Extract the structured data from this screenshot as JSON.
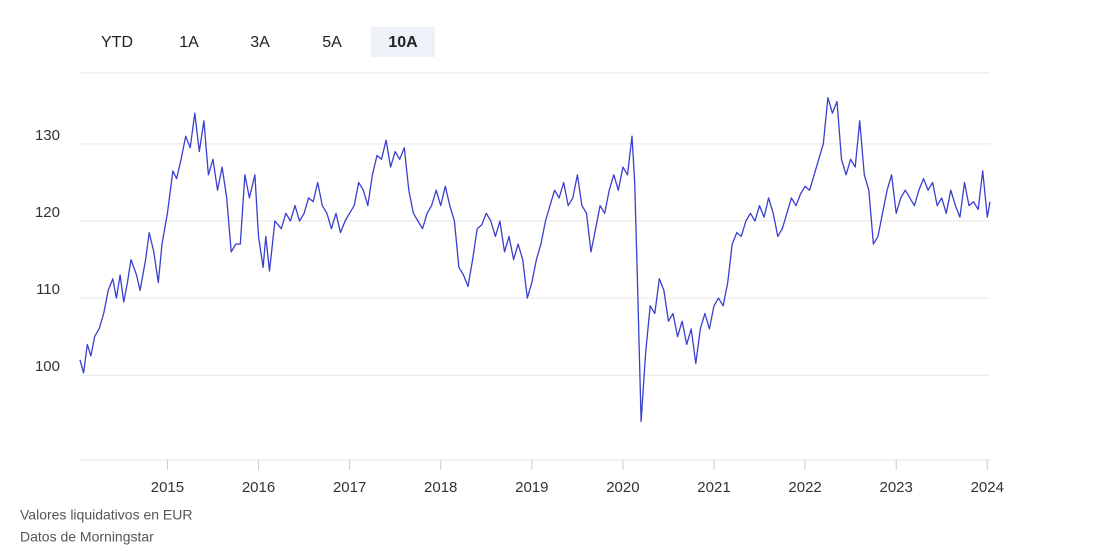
{
  "chart_data": {
    "type": "line",
    "buttons": [
      "YTD",
      "1A",
      "3A",
      "5A",
      "10A"
    ],
    "active_button": "10A",
    "notes": [
      "Valores liquidativos en EUR",
      "Datos de Morningstar"
    ],
    "xlim": [
      2014.04,
      2024.03
    ],
    "xticks": [
      2015,
      2016,
      2017,
      2018,
      2019,
      2020,
      2021,
      2022,
      2023,
      2024
    ],
    "ylim": [
      89,
      139.2
    ],
    "yticks": [
      100,
      110,
      120,
      130
    ],
    "grid": true,
    "x": [
      2014.04,
      2014.08,
      2014.12,
      2014.16,
      2014.2,
      2014.25,
      2014.3,
      2014.35,
      2014.4,
      2014.44,
      2014.48,
      2014.52,
      2014.56,
      2014.6,
      2014.66,
      2014.7,
      2014.76,
      2014.8,
      2014.85,
      2014.9,
      2014.94,
      2015.0,
      2015.06,
      2015.1,
      2015.15,
      2015.2,
      2015.25,
      2015.3,
      2015.35,
      2015.4,
      2015.45,
      2015.5,
      2015.55,
      2015.6,
      2015.65,
      2015.7,
      2015.75,
      2015.8,
      2015.85,
      2015.9,
      2015.96,
      2016.0,
      2016.05,
      2016.08,
      2016.12,
      2016.18,
      2016.25,
      2016.3,
      2016.35,
      2016.4,
      2016.45,
      2016.5,
      2016.55,
      2016.6,
      2016.65,
      2016.7,
      2016.75,
      2016.8,
      2016.85,
      2016.9,
      2016.95,
      2017.0,
      2017.05,
      2017.1,
      2017.15,
      2017.2,
      2017.25,
      2017.3,
      2017.35,
      2017.4,
      2017.45,
      2017.5,
      2017.55,
      2017.6,
      2017.65,
      2017.7,
      2017.75,
      2017.8,
      2017.85,
      2017.9,
      2017.95,
      2018.0,
      2018.05,
      2018.1,
      2018.15,
      2018.2,
      2018.25,
      2018.3,
      2018.35,
      2018.4,
      2018.45,
      2018.5,
      2018.55,
      2018.6,
      2018.65,
      2018.7,
      2018.75,
      2018.8,
      2018.85,
      2018.9,
      2018.95,
      2019.0,
      2019.05,
      2019.1,
      2019.15,
      2019.2,
      2019.25,
      2019.3,
      2019.35,
      2019.4,
      2019.45,
      2019.5,
      2019.55,
      2019.6,
      2019.65,
      2019.7,
      2019.75,
      2019.8,
      2019.85,
      2019.9,
      2019.95,
      2020.0,
      2020.05,
      2020.1,
      2020.13,
      2020.16,
      2020.2,
      2020.25,
      2020.3,
      2020.35,
      2020.4,
      2020.45,
      2020.5,
      2020.55,
      2020.6,
      2020.65,
      2020.7,
      2020.75,
      2020.8,
      2020.85,
      2020.9,
      2020.95,
      2021.0,
      2021.05,
      2021.1,
      2021.15,
      2021.2,
      2021.25,
      2021.3,
      2021.35,
      2021.4,
      2021.45,
      2021.5,
      2021.55,
      2021.6,
      2021.65,
      2021.7,
      2021.75,
      2021.8,
      2021.85,
      2021.9,
      2021.95,
      2022.0,
      2022.05,
      2022.1,
      2022.15,
      2022.2,
      2022.25,
      2022.3,
      2022.35,
      2022.4,
      2022.45,
      2022.5,
      2022.55,
      2022.6,
      2022.65,
      2022.7,
      2022.75,
      2022.8,
      2022.85,
      2022.9,
      2022.95,
      2023.0,
      2023.05,
      2023.1,
      2023.15,
      2023.2,
      2023.25,
      2023.3,
      2023.35,
      2023.4,
      2023.45,
      2023.5,
      2023.55,
      2023.6,
      2023.65,
      2023.7,
      2023.75,
      2023.8,
      2023.85,
      2023.9,
      2023.95,
      2024.0,
      2024.03
    ],
    "series": [
      {
        "color": "#3a3fcf",
        "values": [
          102,
          100.3,
          104,
          102.5,
          105,
          106,
          108,
          111,
          112.5,
          110,
          113,
          109.5,
          112,
          115,
          113,
          111,
          115,
          118.5,
          116,
          112,
          117,
          121,
          126.5,
          125.5,
          128,
          131,
          129.5,
          134,
          129,
          133,
          126,
          128,
          124,
          127,
          123,
          116,
          117,
          117,
          126,
          123,
          126,
          118,
          114,
          118,
          113.5,
          120,
          119,
          121,
          120,
          122,
          120,
          121,
          123,
          122.5,
          125,
          122,
          121,
          119,
          121,
          118.5,
          120,
          121,
          122,
          125,
          124,
          122,
          126,
          128.5,
          128,
          130.5,
          127,
          129,
          128,
          129.5,
          124,
          121,
          120,
          119,
          121,
          122,
          124,
          122,
          124.5,
          122,
          120,
          114,
          113,
          111.5,
          115,
          119,
          119.5,
          121,
          120,
          118,
          120,
          116,
          118,
          115,
          117,
          115,
          110,
          112,
          115,
          117,
          120,
          122,
          124,
          123,
          125,
          122,
          123,
          126,
          122,
          121,
          116,
          119,
          122,
          121,
          124,
          126,
          124,
          127,
          126,
          131,
          125,
          112,
          94,
          103,
          109,
          108,
          112.5,
          111,
          107,
          108,
          105,
          107,
          104,
          106,
          101.5,
          106,
          108,
          106,
          109,
          110,
          109,
          112,
          117,
          118.5,
          118,
          120,
          121,
          120,
          122,
          120.5,
          123,
          121,
          118,
          119,
          121,
          123,
          122,
          123.5,
          124.5,
          124,
          126,
          128,
          130,
          136,
          134,
          135.5,
          128,
          126,
          128,
          127,
          133,
          126,
          124,
          117,
          118,
          121,
          124,
          126,
          121,
          123,
          124,
          123,
          122,
          124,
          125.5,
          124,
          125,
          122,
          123,
          121,
          124,
          122,
          120.5,
          125,
          122,
          122.5,
          121.5,
          126.5,
          120.5,
          122.5
        ]
      }
    ]
  }
}
